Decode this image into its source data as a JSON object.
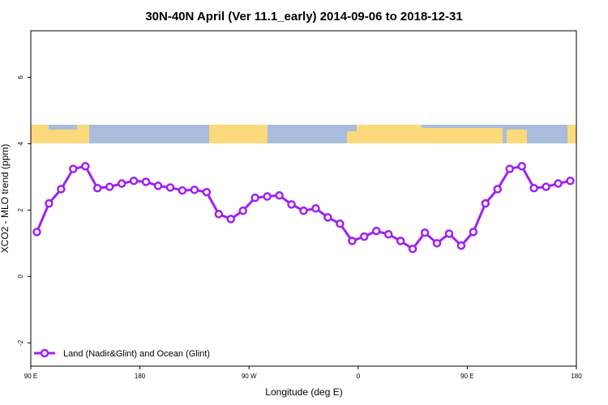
{
  "chart_data": {
    "type": "line",
    "title": "30N-40N April (Ver 11.1_early)   2014-09-06 to 2018-12-31",
    "x_label": "Longitude (deg E)",
    "y_label": "XCO2 - MLO trend (ppm)",
    "x": [
      95,
      105,
      115,
      125,
      135,
      145,
      155,
      165,
      175,
      185,
      195,
      205,
      215,
      225,
      235,
      245,
      255,
      265,
      275,
      285,
      295,
      305,
      315,
      325,
      335,
      345,
      355,
      365,
      375,
      385,
      395,
      405,
      415,
      425,
      435,
      445,
      455,
      465,
      475,
      485,
      495,
      505,
      515,
      525,
      535
    ],
    "series": [
      {
        "name": "Land (Nadir&Glint) and Ocean (Glint)",
        "color": "#a020f0",
        "values": [
          1.34,
          2.2,
          2.63,
          3.24,
          3.32,
          2.66,
          2.7,
          2.8,
          2.88,
          2.85,
          2.73,
          2.68,
          2.59,
          2.61,
          2.54,
          1.88,
          1.73,
          1.98,
          2.37,
          2.41,
          2.44,
          2.17,
          1.98,
          2.05,
          1.78,
          1.59,
          1.07,
          1.2,
          1.37,
          1.27,
          1.07,
          0.83,
          1.32,
          1.0,
          1.29,
          0.93,
          1.34,
          2.2,
          2.63,
          3.24,
          3.32,
          2.66,
          2.7,
          2.8,
          2.88
        ]
      }
    ],
    "xlim": [
      90,
      540
    ],
    "xticks": [
      {
        "value": 90,
        "label": "90 E"
      },
      180,
      {
        "value": 270,
        "label": "90 W"
      },
      {
        "value": 360,
        "label": "0"
      },
      {
        "value": 450,
        "label": "90 E"
      },
      {
        "value": 540,
        "label": "180"
      }
    ],
    "ylim": [
      -2.7,
      7.4
    ],
    "yticks": [
      -2,
      0,
      2,
      4,
      6
    ],
    "legend": "bottom-left"
  }
}
